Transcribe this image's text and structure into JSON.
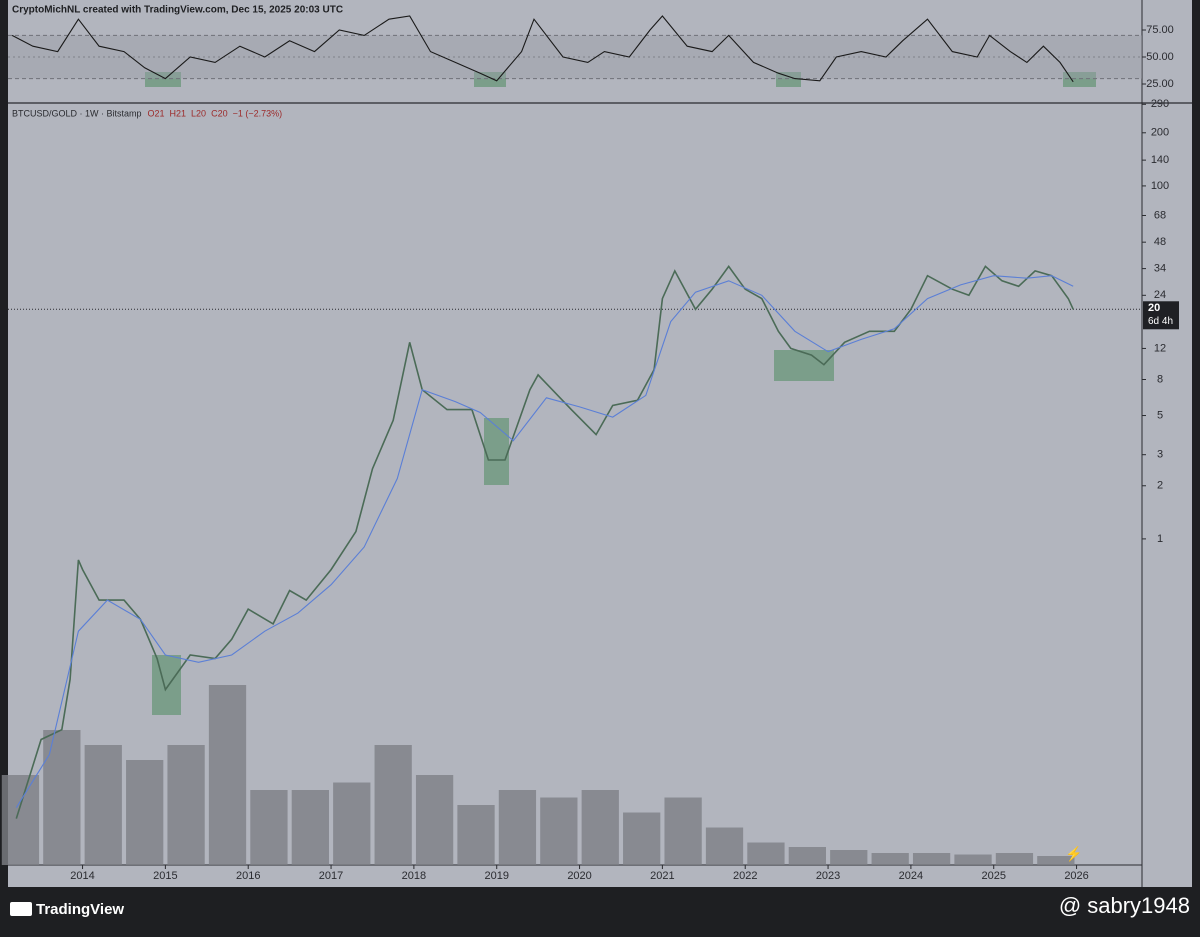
{
  "header": {
    "credit": "CryptoMichNL created with TradingView.com, Dec 15, 2025 20:03 UTC"
  },
  "footer": {
    "brand": "TradingView",
    "watermark": "@ sabry1948"
  },
  "chart_data": [
    {
      "type": "line",
      "symbol": "BTCUSD/GOLD · 1W · Bitstamp",
      "legend_values": [
        "O21",
        "H21",
        "L20",
        "C20",
        "−1 (−2.73%)"
      ],
      "last_value": 20,
      "countdown": "6d 4h",
      "log_scale": true,
      "xlim": [
        2013.1,
        2026.79
      ],
      "xticks": [
        2014,
        2015,
        2016,
        2017,
        2018,
        2019,
        2020,
        2021,
        2022,
        2023,
        2024,
        2025,
        2026
      ],
      "ylim": [
        0.0142,
        295
      ],
      "yticks": [
        1,
        2,
        3,
        5,
        8,
        12,
        24,
        34,
        48,
        68,
        100,
        140,
        200,
        290
      ],
      "series": [
        {
          "color": "#4b6b57",
          "x": [
            2013.2,
            2013.5,
            2013.75,
            2013.85,
            2013.95,
            2014.0,
            2014.2,
            2014.5,
            2014.7,
            2014.9,
            2015.0,
            2015.3,
            2015.6,
            2015.8,
            2016.0,
            2016.3,
            2016.5,
            2016.7,
            2017.0,
            2017.3,
            2017.5,
            2017.75,
            2017.95,
            2018.1,
            2018.4,
            2018.7,
            2018.9,
            2019.1,
            2019.4,
            2019.5,
            2019.9,
            2020.2,
            2020.4,
            2020.7,
            2020.9,
            2021.0,
            2021.15,
            2021.4,
            2021.6,
            2021.8,
            2022.0,
            2022.2,
            2022.4,
            2022.55,
            2022.8,
            2022.95,
            2023.2,
            2023.5,
            2023.8,
            2024.0,
            2024.2,
            2024.5,
            2024.7,
            2024.9,
            2025.1,
            2025.3,
            2025.5,
            2025.7,
            2025.9,
            2025.96
          ],
          "values": [
            0.026,
            0.073,
            0.083,
            0.16,
            0.76,
            0.67,
            0.45,
            0.45,
            0.35,
            0.21,
            0.14,
            0.22,
            0.21,
            0.27,
            0.4,
            0.33,
            0.51,
            0.45,
            0.67,
            1.1,
            2.5,
            4.7,
            13,
            7,
            5.4,
            5.4,
            2.8,
            2.8,
            7,
            8.5,
            5.4,
            3.9,
            5.7,
            6.1,
            9.1,
            23,
            33,
            20,
            26,
            35,
            26,
            23,
            15,
            12,
            11,
            9.7,
            13,
            15,
            15,
            20,
            31,
            26,
            24,
            35,
            29,
            27,
            33,
            31,
            23,
            20
          ]
        },
        {
          "color": "#5b7fd6",
          "x": [
            2013.2,
            2013.6,
            2013.95,
            2014.3,
            2014.7,
            2015.0,
            2015.4,
            2015.8,
            2016.2,
            2016.6,
            2017.0,
            2017.4,
            2017.8,
            2018.1,
            2018.5,
            2018.8,
            2019.2,
            2019.6,
            2020.0,
            2020.4,
            2020.8,
            2021.1,
            2021.4,
            2021.8,
            2022.2,
            2022.6,
            2023.0,
            2023.4,
            2023.8,
            2024.2,
            2024.6,
            2025.0,
            2025.4,
            2025.7,
            2025.96
          ],
          "values": [
            0.03,
            0.06,
            0.3,
            0.45,
            0.35,
            0.22,
            0.2,
            0.22,
            0.3,
            0.38,
            0.55,
            0.9,
            2.2,
            7,
            6,
            5.2,
            3.6,
            6.3,
            5.6,
            4.9,
            6.5,
            17,
            25,
            29,
            24,
            15,
            11.5,
            13.5,
            15.5,
            23,
            27.5,
            31,
            30,
            31,
            27
          ]
        }
      ],
      "volume": {
        "color": "#7d7f86",
        "x": [
          2013.25,
          2013.75,
          2014.25,
          2014.75,
          2015.25,
          2015.75,
          2016.25,
          2016.75,
          2017.25,
          2017.75,
          2018.25,
          2018.75,
          2019.25,
          2019.75,
          2020.25,
          2020.75,
          2021.25,
          2021.75,
          2022.25,
          2022.75,
          2023.25,
          2023.75,
          2024.25,
          2024.75,
          2025.25,
          2025.75
        ],
        "values": [
          60,
          90,
          80,
          70,
          80,
          120,
          50,
          50,
          55,
          80,
          60,
          40,
          50,
          45,
          50,
          35,
          45,
          25,
          15,
          12,
          10,
          8,
          8,
          7,
          8,
          6
        ]
      }
    },
    {
      "type": "line",
      "xlim": [
        2013.1,
        2026.79
      ],
      "ylim": [
        7.4,
        102.8
      ],
      "yticks": [
        {
          "value": 75,
          "label": "75.00"
        },
        {
          "value": 50,
          "label": "50.00"
        },
        {
          "value": 25,
          "label": "25.00"
        }
      ],
      "band": [
        30,
        70
      ],
      "series": [
        {
          "color": "#1a1a1a",
          "x": [
            2013.15,
            2013.4,
            2013.7,
            2013.95,
            2014.2,
            2014.5,
            2014.75,
            2015.0,
            2015.3,
            2015.6,
            2015.9,
            2016.2,
            2016.5,
            2016.8,
            2017.1,
            2017.4,
            2017.7,
            2017.95,
            2018.2,
            2018.5,
            2018.8,
            2019.0,
            2019.3,
            2019.45,
            2019.8,
            2020.1,
            2020.3,
            2020.6,
            2020.85,
            2021.0,
            2021.3,
            2021.6,
            2021.8,
            2022.1,
            2022.4,
            2022.6,
            2022.9,
            2023.1,
            2023.4,
            2023.7,
            2023.9,
            2024.2,
            2024.5,
            2024.8,
            2024.95,
            2025.2,
            2025.4,
            2025.6,
            2025.8,
            2025.96
          ],
          "values": [
            70,
            60,
            55,
            85,
            60,
            55,
            40,
            30,
            50,
            45,
            60,
            50,
            65,
            55,
            75,
            70,
            85,
            88,
            55,
            45,
            35,
            28,
            55,
            85,
            50,
            45,
            55,
            50,
            75,
            88,
            60,
            55,
            70,
            45,
            35,
            30,
            28,
            50,
            55,
            50,
            65,
            85,
            55,
            50,
            70,
            55,
            45,
            60,
            45,
            27
          ]
        }
      ]
    }
  ]
}
